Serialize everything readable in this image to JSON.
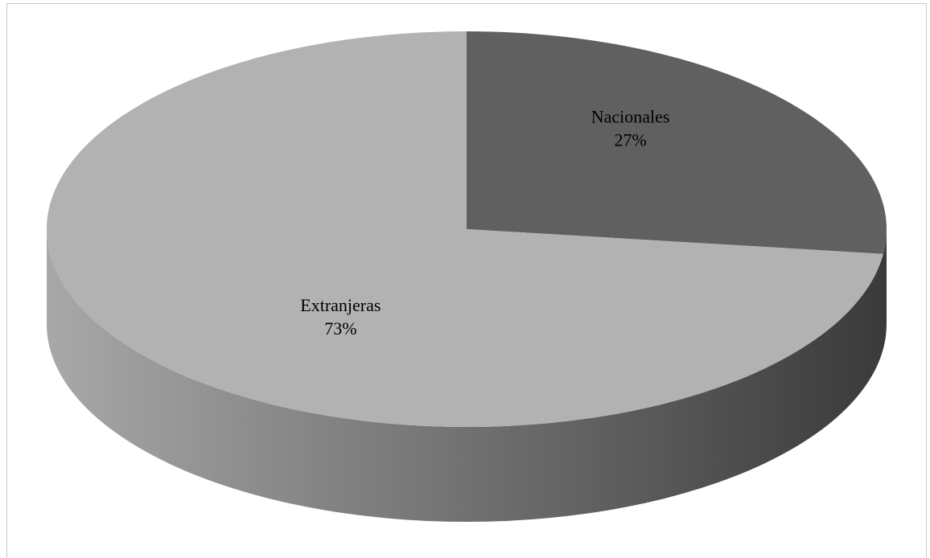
{
  "chart_data": {
    "type": "pie",
    "style": "3d",
    "title": "",
    "slices": [
      {
        "name": "Nacionales",
        "value": 27,
        "label": "27%",
        "color": "#606060"
      },
      {
        "name": "Extranjeras",
        "value": 73,
        "label": "73%",
        "color": "#b2b2b2"
      }
    ],
    "side_colors": {
      "light": "#a8a8a8",
      "dark": "#3a3a3a"
    },
    "legend": "none"
  }
}
